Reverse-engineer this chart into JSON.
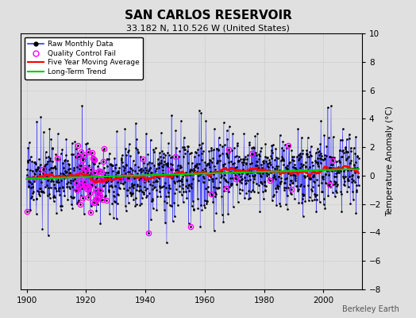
{
  "title": "SAN CARLOS RESERVOIR",
  "subtitle": "33.182 N, 110.526 W (United States)",
  "ylabel": "Temperature Anomaly (°C)",
  "credit": "Berkeley Earth",
  "ylim": [
    -8,
    10
  ],
  "yticks": [
    -8,
    -6,
    -4,
    -2,
    0,
    2,
    4,
    6,
    8,
    10
  ],
  "xlim": [
    1898,
    2013
  ],
  "xticks": [
    1900,
    1920,
    1940,
    1960,
    1980,
    2000
  ],
  "raw_color": "#3333ff",
  "qc_color": "#ff00ff",
  "moving_avg_color": "#ff0000",
  "trend_color": "#00cc00",
  "bg_color": "#e0e0e0",
  "grid_color": "#c8c8c8",
  "seed": 17
}
